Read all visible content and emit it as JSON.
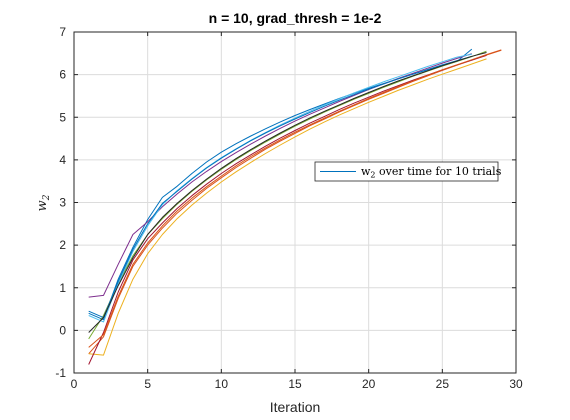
{
  "chart_data": {
    "type": "line",
    "title": "n = 10, grad_thresh = 1e-2",
    "xlabel": "Iteration",
    "ylabel": "w2",
    "xlim": [
      0,
      30
    ],
    "ylim": [
      -1,
      7
    ],
    "xticks": [
      0,
      5,
      10,
      15,
      20,
      25,
      30
    ],
    "yticks": [
      -1,
      0,
      1,
      2,
      3,
      4,
      5,
      6,
      7
    ],
    "grid": true,
    "legend": {
      "position": "right",
      "entries": [
        {
          "label_main": "w",
          "label_sub": "2",
          "label_rest": " over time for 10 trials",
          "color": "#0072BD"
        }
      ]
    },
    "series": [
      {
        "color": "#0072BD",
        "x": [
          1,
          2,
          3,
          4,
          5,
          6,
          7,
          8,
          9,
          10,
          11,
          12,
          13,
          14,
          15,
          16,
          17,
          18,
          19,
          20,
          21,
          22,
          23,
          24,
          25,
          26,
          27
        ],
        "y": [
          0.4,
          0.25,
          1.2,
          1.95,
          2.6,
          3.12,
          3.38,
          3.68,
          3.95,
          4.18,
          4.38,
          4.56,
          4.73,
          4.89,
          5.04,
          5.18,
          5.31,
          5.44,
          5.56,
          5.68,
          5.79,
          5.9,
          6.01,
          6.11,
          6.21,
          6.31,
          6.6
        ]
      },
      {
        "color": "#D95319",
        "x": [
          1,
          2,
          3,
          4,
          5,
          6,
          7,
          8,
          9,
          10,
          11,
          12,
          13,
          14,
          15,
          16,
          17,
          18,
          19,
          20,
          21,
          22,
          23,
          24,
          25,
          26,
          27,
          28,
          29
        ],
        "y": [
          -0.55,
          -0.15,
          0.75,
          1.5,
          2.0,
          2.4,
          2.75,
          3.05,
          3.33,
          3.58,
          3.82,
          4.04,
          4.25,
          4.44,
          4.62,
          4.8,
          4.96,
          5.12,
          5.27,
          5.42,
          5.56,
          5.7,
          5.84,
          5.97,
          6.1,
          6.22,
          6.34,
          6.46,
          6.57
        ]
      },
      {
        "color": "#EDB120",
        "x": [
          1,
          2,
          3,
          4,
          5,
          6,
          7,
          8,
          9,
          10,
          11,
          12,
          13,
          14,
          15,
          16,
          17,
          18,
          19,
          20,
          21,
          22,
          23,
          24,
          25,
          26,
          27,
          28
        ],
        "y": [
          -0.55,
          -0.58,
          0.4,
          1.2,
          1.8,
          2.25,
          2.62,
          2.94,
          3.22,
          3.48,
          3.72,
          3.94,
          4.15,
          4.35,
          4.54,
          4.72,
          4.89,
          5.05,
          5.2,
          5.35,
          5.49,
          5.63,
          5.76,
          5.89,
          6.01,
          6.13,
          6.25,
          6.37
        ]
      },
      {
        "color": "#7E2F8E",
        "x": [
          1,
          2,
          3,
          4,
          5,
          6,
          7,
          8,
          9,
          10,
          11,
          12,
          13,
          14,
          15,
          16,
          17,
          18,
          19,
          20,
          21,
          22,
          23,
          24,
          25,
          26,
          27
        ],
        "y": [
          0.78,
          0.82,
          1.55,
          2.25,
          2.55,
          2.9,
          3.2,
          3.48,
          3.73,
          3.96,
          4.17,
          4.37,
          4.56,
          4.74,
          4.91,
          5.07,
          5.22,
          5.37,
          5.51,
          5.65,
          5.78,
          5.91,
          6.03,
          6.15,
          6.27,
          6.38,
          6.49
        ]
      },
      {
        "color": "#77AC30",
        "x": [
          1,
          2,
          3,
          4,
          5,
          6,
          7,
          8,
          9,
          10,
          11,
          12,
          13,
          14,
          15,
          16,
          17,
          18,
          19,
          20,
          21,
          22,
          23,
          24,
          25,
          26,
          27,
          28
        ],
        "y": [
          -0.2,
          0.35,
          1.1,
          1.75,
          2.25,
          2.62,
          2.96,
          3.26,
          3.53,
          3.78,
          4.01,
          4.22,
          4.42,
          4.61,
          4.79,
          4.96,
          5.12,
          5.27,
          5.42,
          5.56,
          5.7,
          5.83,
          5.96,
          6.08,
          6.2,
          6.31,
          6.42,
          6.55
        ]
      },
      {
        "color": "#4DBEEE",
        "x": [
          1,
          2,
          3,
          4,
          5,
          6,
          7,
          8,
          9,
          10,
          11,
          12,
          13,
          14,
          15,
          16,
          17,
          18,
          19,
          20,
          21,
          22,
          23,
          24,
          25,
          26,
          27
        ],
        "y": [
          0.35,
          0.2,
          1.1,
          1.85,
          2.45,
          2.95,
          3.28,
          3.56,
          3.82,
          4.05,
          4.26,
          4.46,
          4.64,
          4.82,
          4.98,
          5.14,
          5.29,
          5.43,
          5.57,
          5.7,
          5.83,
          5.95,
          6.07,
          6.19,
          6.3,
          6.41,
          6.48
        ]
      },
      {
        "color": "#A2142F",
        "x": [
          1,
          2,
          3,
          4,
          5,
          6,
          7,
          8,
          9,
          10,
          11,
          12,
          13,
          14,
          15,
          16,
          17,
          18,
          19,
          20,
          21,
          22,
          23,
          24,
          25,
          26,
          27,
          28
        ],
        "y": [
          -0.8,
          -0.05,
          0.9,
          1.65,
          2.15,
          2.52,
          2.86,
          3.16,
          3.43,
          3.68,
          3.91,
          4.12,
          4.32,
          4.51,
          4.69,
          4.86,
          5.02,
          5.18,
          5.33,
          5.47,
          5.61,
          5.74,
          5.87,
          5.99,
          6.11,
          6.23,
          6.34,
          6.45
        ]
      },
      {
        "color": "#0072BD",
        "x": [
          1,
          2,
          3,
          4,
          5,
          6,
          7,
          8,
          9,
          10,
          11,
          12,
          13,
          14,
          15,
          16,
          17,
          18,
          19,
          20,
          21,
          22,
          23,
          24,
          25,
          26,
          27
        ],
        "y": [
          0.45,
          0.3,
          1.15,
          1.9,
          2.5,
          2.98,
          3.26,
          3.55,
          3.81,
          4.04,
          4.25,
          4.45,
          4.63,
          4.8,
          4.96,
          5.11,
          5.26,
          5.4,
          5.53,
          5.66,
          5.78,
          5.9,
          6.01,
          6.12,
          6.23,
          6.33,
          6.43
        ]
      },
      {
        "color": "#D95319",
        "x": [
          1,
          2,
          3,
          4,
          5,
          6,
          7,
          8,
          9,
          10,
          11,
          12,
          13,
          14,
          15,
          16,
          17,
          18,
          19,
          20,
          21,
          22,
          23,
          24,
          25,
          26,
          27,
          28,
          29
        ],
        "y": [
          -0.4,
          -0.1,
          0.8,
          1.55,
          2.05,
          2.45,
          2.8,
          3.1,
          3.37,
          3.62,
          3.86,
          4.08,
          4.28,
          4.47,
          4.65,
          4.82,
          4.98,
          5.14,
          5.29,
          5.44,
          5.58,
          5.72,
          5.85,
          5.98,
          6.11,
          6.23,
          6.35,
          6.47,
          6.58
        ]
      },
      {
        "color": "#262626",
        "x": [
          1,
          2,
          3,
          4,
          5,
          6,
          7,
          8,
          9,
          10,
          11,
          12,
          13,
          14,
          15,
          16,
          17,
          18,
          19,
          20,
          21,
          22,
          23,
          24,
          25,
          26,
          27,
          28
        ],
        "y": [
          -0.05,
          0.3,
          1.05,
          1.7,
          2.25,
          2.65,
          2.98,
          3.28,
          3.55,
          3.8,
          4.03,
          4.24,
          4.44,
          4.63,
          4.81,
          4.98,
          5.14,
          5.29,
          5.44,
          5.58,
          5.72,
          5.85,
          5.97,
          6.09,
          6.21,
          6.32,
          6.43,
          6.52
        ]
      }
    ]
  }
}
